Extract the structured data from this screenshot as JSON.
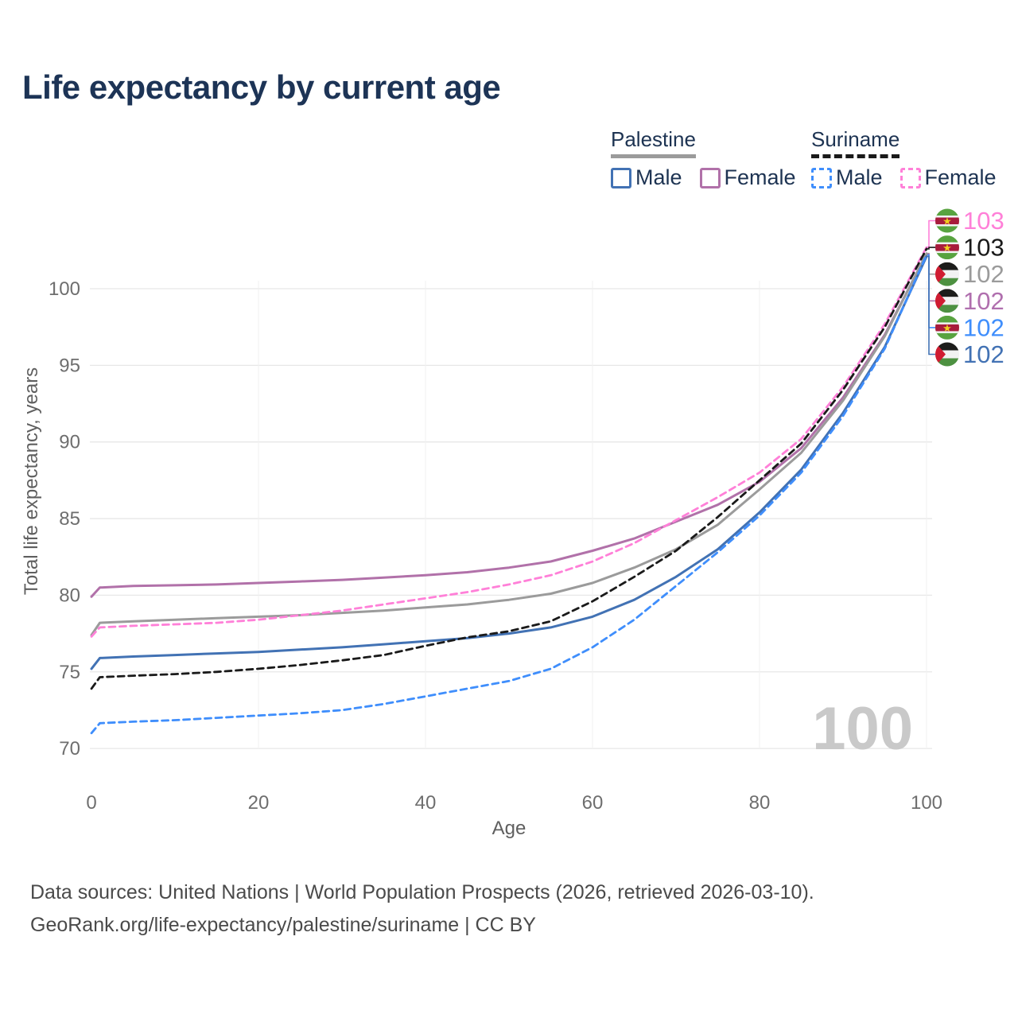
{
  "title": "Life expectancy by current age",
  "legend": {
    "groups": [
      {
        "label": "Palestine",
        "series_style": "solid",
        "underline_color": "#9b9b9b",
        "items": [
          {
            "label": "Male",
            "series": "Palestine Male"
          },
          {
            "label": "Female",
            "series": "Palestine Female"
          }
        ]
      },
      {
        "label": "Suriname",
        "series_style": "dashed",
        "underline_color": "#1a1a1a",
        "items": [
          {
            "label": "Male",
            "series": "Suriname Male"
          },
          {
            "label": "Female",
            "series": "Suriname Female"
          }
        ]
      }
    ]
  },
  "watermark": "100",
  "footer": {
    "line1": "Data sources: United Nations | World Population Prospects (2026, retrieved 2026-03-10).",
    "line2": "GeoRank.org/life-expectancy/palestine/suriname | CC BY"
  },
  "chart_data": {
    "type": "line",
    "title": "Life expectancy by current age",
    "xlabel": "Age",
    "ylabel": "Total life expectancy, years",
    "xlim": [
      0,
      100
    ],
    "ylim": [
      70,
      100
    ],
    "xticks": [
      0,
      20,
      40,
      60,
      80,
      100
    ],
    "yticks": [
      70,
      75,
      80,
      85,
      90,
      95,
      100
    ],
    "grid": "horizontal",
    "legend_position": "top-right",
    "x": [
      0,
      1,
      5,
      10,
      15,
      20,
      25,
      30,
      35,
      40,
      45,
      50,
      55,
      60,
      65,
      70,
      75,
      80,
      85,
      90,
      95,
      100
    ],
    "series": [
      {
        "name": "Palestine Female",
        "country": "Palestine",
        "sex": "Female",
        "color": "#b171a9",
        "dashed": false,
        "values": [
          79.9,
          80.5,
          80.6,
          80.65,
          80.7,
          80.8,
          80.9,
          81.0,
          81.15,
          81.3,
          81.5,
          81.8,
          82.2,
          82.9,
          83.7,
          84.8,
          85.9,
          87.4,
          89.6,
          92.9,
          97.0,
          102.25
        ]
      },
      {
        "name": "Palestine Total",
        "country": "Palestine",
        "sex": "Both",
        "color": "#9b9b9b",
        "dashed": false,
        "values": [
          77.4,
          78.2,
          78.3,
          78.4,
          78.5,
          78.6,
          78.7,
          78.85,
          79.0,
          79.2,
          79.4,
          79.7,
          80.1,
          80.8,
          81.8,
          83.0,
          84.6,
          86.9,
          89.3,
          92.7,
          96.9,
          102.3
        ]
      },
      {
        "name": "Palestine Male",
        "country": "Palestine",
        "sex": "Male",
        "color": "#4272b4",
        "dashed": false,
        "values": [
          75.2,
          75.9,
          76.0,
          76.1,
          76.2,
          76.3,
          76.45,
          76.6,
          76.8,
          77.0,
          77.2,
          77.5,
          77.9,
          78.6,
          79.7,
          81.2,
          83.0,
          85.4,
          88.2,
          91.9,
          96.2,
          102.1
        ]
      },
      {
        "name": "Suriname Female",
        "country": "Suriname",
        "sex": "Female",
        "color": "#ff80d8",
        "dashed": true,
        "values": [
          77.3,
          77.9,
          78.0,
          78.1,
          78.2,
          78.4,
          78.7,
          79.0,
          79.4,
          79.8,
          80.2,
          80.7,
          81.3,
          82.2,
          83.4,
          84.9,
          86.4,
          88.0,
          90.2,
          93.6,
          97.7,
          102.7
        ]
      },
      {
        "name": "Suriname Total",
        "country": "Suriname",
        "sex": "Both",
        "color": "#1a1a1a",
        "dashed": true,
        "values": [
          73.9,
          74.65,
          74.75,
          74.85,
          75.0,
          75.2,
          75.45,
          75.75,
          76.1,
          76.7,
          77.25,
          77.65,
          78.3,
          79.6,
          81.2,
          82.9,
          85.1,
          87.5,
          89.9,
          93.4,
          97.5,
          102.6
        ]
      },
      {
        "name": "Suriname Male",
        "country": "Suriname",
        "sex": "Male",
        "color": "#3f8efc",
        "dashed": true,
        "values": [
          71.0,
          71.65,
          71.75,
          71.85,
          72.0,
          72.15,
          72.3,
          72.5,
          72.9,
          73.4,
          73.9,
          74.4,
          75.2,
          76.6,
          78.4,
          80.6,
          82.8,
          85.2,
          88.0,
          91.7,
          96.1,
          102.2
        ]
      }
    ],
    "end_labels": [
      {
        "series": "Suriname Female",
        "flag": "suriname",
        "value": "103",
        "color": "#ff80d8"
      },
      {
        "series": "Suriname Total",
        "flag": "suriname",
        "value": "103",
        "color": "#1a1a1a"
      },
      {
        "series": "Palestine Total",
        "flag": "palestine",
        "value": "102",
        "color": "#9b9b9b"
      },
      {
        "series": "Palestine Female",
        "flag": "palestine",
        "value": "102",
        "color": "#b06fae"
      },
      {
        "series": "Suriname Male",
        "flag": "suriname",
        "value": "102",
        "color": "#3f8efc"
      },
      {
        "series": "Palestine Male",
        "flag": "palestine",
        "value": "102",
        "color": "#4272b4"
      }
    ]
  }
}
